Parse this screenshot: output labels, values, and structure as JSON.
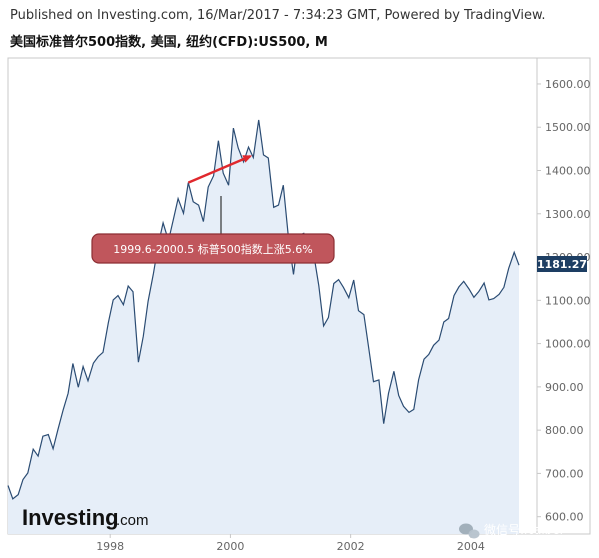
{
  "header": {
    "published": "Published on Investing.com, 16/Mar/2017 - 7:34:23 GMT, Powered by TradingView.",
    "instrument": "美国标准普尔500指数, 美国, 纽约(CFD):US500, M"
  },
  "logo": {
    "main": "Investing",
    "suffix": ".com"
  },
  "watermark": {
    "text": "微信号:icaibei"
  },
  "colors": {
    "line": "#2b4c73",
    "area": "#e6eef8",
    "arrow": "#e0282d",
    "callout_fill": "#c0565c",
    "last_label_bg": "#1d3e63"
  },
  "callout": {
    "text": "1999.6-2000.5 标普500指数上涨5.6%"
  },
  "chart_data": {
    "type": "area",
    "title": "",
    "xlabel": "",
    "ylabel": "",
    "ylim": [
      560,
      1660
    ],
    "xlim": [
      1996.3,
      2005.1
    ],
    "grid": false,
    "last_value_label": "1181.27",
    "x_ticks": [
      {
        "value": 1998,
        "label": "1998"
      },
      {
        "value": 2000,
        "label": "2000"
      },
      {
        "value": 2002,
        "label": "2002"
      },
      {
        "value": 2004,
        "label": "2004"
      }
    ],
    "y_ticks": [
      {
        "value": 1600,
        "label": "1600.00"
      },
      {
        "value": 1500,
        "label": "1500.00"
      },
      {
        "value": 1400,
        "label": "1400.00"
      },
      {
        "value": 1300,
        "label": "1300.00"
      },
      {
        "value": 1200,
        "label": "1200.00"
      },
      {
        "value": 1100,
        "label": "1100.00"
      },
      {
        "value": 1000,
        "label": "1000.00"
      },
      {
        "value": 900,
        "label": "900.00"
      },
      {
        "value": 800,
        "label": "800.00"
      },
      {
        "value": 700,
        "label": "700.00"
      },
      {
        "value": 600,
        "label": "600.00"
      }
    ],
    "points": [
      [
        1996.3,
        672
      ],
      [
        1996.38,
        641
      ],
      [
        1996.47,
        651
      ],
      [
        1996.55,
        686
      ],
      [
        1996.63,
        701
      ],
      [
        1996.72,
        756
      ],
      [
        1996.8,
        740
      ],
      [
        1996.88,
        786
      ],
      [
        1996.97,
        790
      ],
      [
        1997.05,
        757
      ],
      [
        1997.13,
        801
      ],
      [
        1997.22,
        848
      ],
      [
        1997.3,
        885
      ],
      [
        1997.38,
        954
      ],
      [
        1997.47,
        899
      ],
      [
        1997.55,
        947
      ],
      [
        1997.63,
        914
      ],
      [
        1997.72,
        955
      ],
      [
        1997.8,
        970
      ],
      [
        1997.88,
        980
      ],
      [
        1997.97,
        1049
      ],
      [
        1998.05,
        1101
      ],
      [
        1998.13,
        1111
      ],
      [
        1998.22,
        1090
      ],
      [
        1998.3,
        1133
      ],
      [
        1998.38,
        1120
      ],
      [
        1998.47,
        957
      ],
      [
        1998.55,
        1017
      ],
      [
        1998.63,
        1098
      ],
      [
        1998.72,
        1163
      ],
      [
        1998.8,
        1229
      ],
      [
        1998.88,
        1279
      ],
      [
        1998.97,
        1238
      ],
      [
        1999.05,
        1286
      ],
      [
        1999.13,
        1335
      ],
      [
        1999.22,
        1301
      ],
      [
        1999.3,
        1372
      ],
      [
        1999.38,
        1328
      ],
      [
        1999.47,
        1320
      ],
      [
        1999.55,
        1282
      ],
      [
        1999.63,
        1362
      ],
      [
        1999.72,
        1388
      ],
      [
        1999.8,
        1469
      ],
      [
        1999.88,
        1394
      ],
      [
        1999.97,
        1366
      ],
      [
        2000.05,
        1498
      ],
      [
        2000.13,
        1452
      ],
      [
        2000.22,
        1420
      ],
      [
        2000.3,
        1454
      ],
      [
        2000.38,
        1430
      ],
      [
        2000.47,
        1517
      ],
      [
        2000.55,
        1436
      ],
      [
        2000.63,
        1429
      ],
      [
        2000.72,
        1315
      ],
      [
        2000.8,
        1320
      ],
      [
        2000.88,
        1366
      ],
      [
        2000.97,
        1239
      ],
      [
        2001.05,
        1160
      ],
      [
        2001.13,
        1249
      ],
      [
        2001.22,
        1255
      ],
      [
        2001.3,
        1224
      ],
      [
        2001.38,
        1211
      ],
      [
        2001.47,
        1134
      ],
      [
        2001.55,
        1041
      ],
      [
        2001.63,
        1060
      ],
      [
        2001.72,
        1139
      ],
      [
        2001.8,
        1148
      ],
      [
        2001.88,
        1130
      ],
      [
        2001.97,
        1106
      ],
      [
        2002.05,
        1147
      ],
      [
        2002.13,
        1076
      ],
      [
        2002.22,
        1067
      ],
      [
        2002.3,
        990
      ],
      [
        2002.38,
        912
      ],
      [
        2002.47,
        916
      ],
      [
        2002.55,
        815
      ],
      [
        2002.63,
        885
      ],
      [
        2002.72,
        936
      ],
      [
        2002.8,
        880
      ],
      [
        2002.88,
        855
      ],
      [
        2002.97,
        841
      ],
      [
        2003.05,
        848
      ],
      [
        2003.13,
        916
      ],
      [
        2003.22,
        964
      ],
      [
        2003.3,
        975
      ],
      [
        2003.38,
        996
      ],
      [
        2003.47,
        1008
      ],
      [
        2003.55,
        1050
      ],
      [
        2003.63,
        1058
      ],
      [
        2003.72,
        1111
      ],
      [
        2003.8,
        1131
      ],
      [
        2003.88,
        1144
      ],
      [
        2003.97,
        1126
      ],
      [
        2004.05,
        1107
      ],
      [
        2004.13,
        1120
      ],
      [
        2004.22,
        1140
      ],
      [
        2004.3,
        1101
      ],
      [
        2004.38,
        1104
      ],
      [
        2004.47,
        1114
      ],
      [
        2004.55,
        1130
      ],
      [
        2004.63,
        1174
      ],
      [
        2004.72,
        1211
      ],
      [
        2004.8,
        1181.27
      ]
    ],
    "arrow": {
      "from": [
        1999.3,
        1372
      ],
      "to": [
        2000.33,
        1433
      ]
    }
  }
}
